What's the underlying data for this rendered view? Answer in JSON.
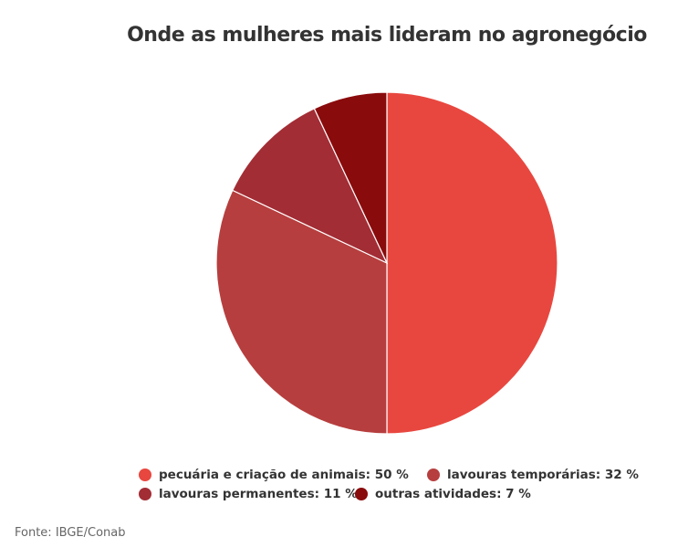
{
  "chart_data": {
    "type": "pie",
    "title": "Onde as mulheres mais lideram no agronegócio",
    "slices": [
      {
        "label": "pecuária e criação de animais",
        "value": 50,
        "legend": "pecuária e criação de animais: 50 %",
        "color": "#e8473f"
      },
      {
        "label": "lavouras temporárias",
        "value": 32,
        "legend": "lavouras temporárias: 32 %",
        "color": "#b73e3e"
      },
      {
        "label": "lavouras permanentes",
        "value": 11,
        "legend": "lavouras permanentes: 11 %",
        "color": "#a32d35"
      },
      {
        "label": "outras atividades",
        "value": 7,
        "legend": "outras atividades: 7 %",
        "color": "#8a0b0c"
      }
    ],
    "legend_position": "bottom"
  },
  "source": "Fonte: IBGE/Conab"
}
